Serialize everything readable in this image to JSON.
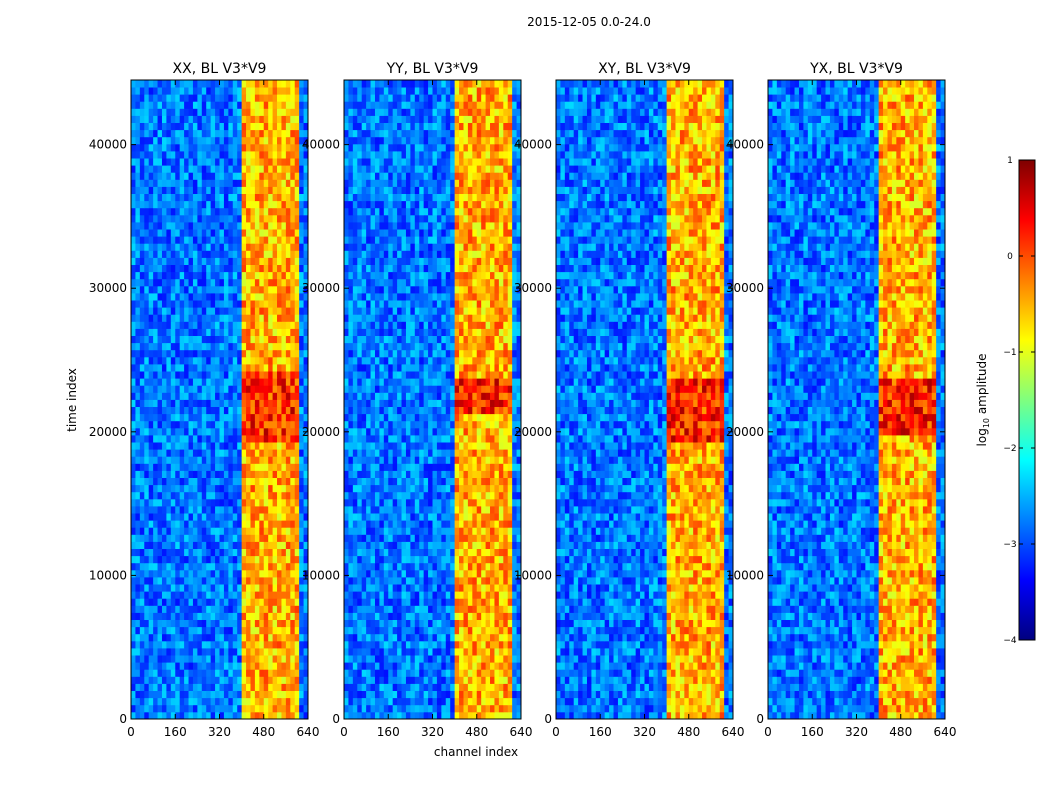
{
  "figure": {
    "suptitle": "2015-12-05 0.0-24.0",
    "shared_xlabel": "channel index",
    "shared_ylabel": "time index"
  },
  "chart_data": [
    {
      "type": "heatmap",
      "title": "XX, BL V3*V9",
      "xlabel": "channel index",
      "ylabel": "time index",
      "xlim": [
        0,
        640
      ],
      "ylim": [
        0,
        44500
      ],
      "xticks": [
        0,
        160,
        320,
        480,
        640
      ],
      "yticks": [
        0,
        10000,
        20000,
        30000,
        40000
      ],
      "xtick_labels": [
        "0",
        "160",
        "320",
        "480",
        "640"
      ],
      "ytick_labels": [
        "0",
        "10000",
        "20000",
        "30000",
        "40000"
      ],
      "rfi_channel_range": [
        405,
        600
      ],
      "peak_time_range": [
        19500,
        24000
      ]
    },
    {
      "type": "heatmap",
      "title": "YY, BL V3*V9",
      "xlabel": "channel index",
      "ylabel": "time index",
      "xlim": [
        0,
        640
      ],
      "ylim": [
        0,
        44500
      ],
      "xticks": [
        0,
        160,
        320,
        480,
        640
      ],
      "yticks": [
        0,
        10000,
        20000,
        30000,
        40000
      ],
      "xtick_labels": [
        "0",
        "160",
        "320",
        "480",
        "640"
      ],
      "ytick_labels": [
        "0",
        "10000",
        "20000",
        "30000",
        "40000"
      ],
      "rfi_channel_range": [
        405,
        600
      ],
      "peak_time_range": [
        21500,
        23500
      ]
    },
    {
      "type": "heatmap",
      "title": "XY, BL V3*V9",
      "xlabel": "channel index",
      "ylabel": "time index",
      "xlim": [
        0,
        640
      ],
      "ylim": [
        0,
        44500
      ],
      "xticks": [
        0,
        160,
        320,
        480,
        640
      ],
      "yticks": [
        0,
        10000,
        20000,
        30000,
        40000
      ],
      "xtick_labels": [
        "0",
        "160",
        "320",
        "480",
        "640"
      ],
      "ytick_labels": [
        "0",
        "10000",
        "20000",
        "30000",
        "40000"
      ],
      "rfi_channel_range": [
        405,
        600
      ],
      "peak_time_range": [
        19500,
        23500
      ]
    },
    {
      "type": "heatmap",
      "title": "YX, BL V3*V9",
      "xlabel": "channel index",
      "ylabel": "time index",
      "xlim": [
        0,
        640
      ],
      "ylim": [
        0,
        44500
      ],
      "xticks": [
        0,
        160,
        320,
        480,
        640
      ],
      "yticks": [
        0,
        10000,
        20000,
        30000,
        40000
      ],
      "xtick_labels": [
        "0",
        "160",
        "320",
        "480",
        "640"
      ],
      "ytick_labels": [
        "0",
        "10000",
        "20000",
        "30000",
        "40000"
      ],
      "rfi_channel_range": [
        405,
        600
      ],
      "peak_time_range": [
        20000,
        23500
      ]
    }
  ],
  "colorbar": {
    "label_prefix": "log",
    "label_sub": "10",
    "label_suffix": " amplitude",
    "range": [
      -4,
      1
    ],
    "ticks": [
      1,
      0,
      -1,
      -2,
      -3,
      -4
    ],
    "tick_labels": [
      "1",
      "0",
      "−1",
      "−2",
      "−3",
      "−4"
    ],
    "colormap": "jet",
    "colormap_stops": [
      "#00007f",
      "#0000ff",
      "#007fff",
      "#00ffff",
      "#7fff7f",
      "#ffff00",
      "#ff7f00",
      "#ff0000",
      "#7f0000"
    ]
  }
}
